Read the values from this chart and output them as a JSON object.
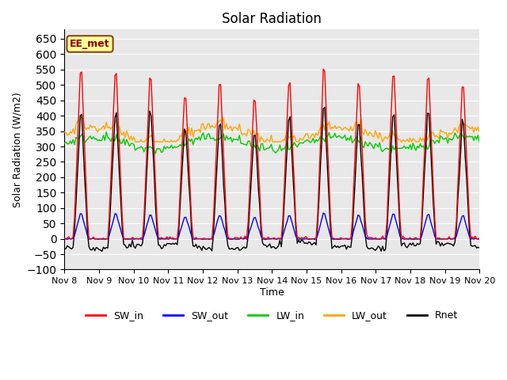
{
  "title": "Solar Radiation",
  "ylabel": "Solar Radiation (W/m2)",
  "xlabel": "Time",
  "ylim": [
    -100,
    680
  ],
  "yticks": [
    -100,
    -50,
    0,
    50,
    100,
    150,
    200,
    250,
    300,
    350,
    400,
    450,
    500,
    550,
    600,
    650
  ],
  "xtick_labels": [
    "Nov 8",
    "Nov 9",
    "Nov 10",
    "Nov 11",
    "Nov 12",
    "Nov 13",
    "Nov 14",
    "Nov 15",
    "Nov 16",
    "Nov 17",
    "Nov 18",
    "Nov 19",
    "Nov 20"
  ],
  "annotation_text": "EE_met",
  "colors": {
    "SW_in": "#FF0000",
    "SW_out": "#0000FF",
    "LW_in": "#00CC00",
    "LW_out": "#FFA500",
    "Rnet": "#000000"
  },
  "legend_entries": [
    "SW_in",
    "SW_out",
    "LW_in",
    "LW_out",
    "Rnet"
  ],
  "n_days": 12,
  "bg_color": "#E8E8E8",
  "grid_color": "#FFFFFF"
}
